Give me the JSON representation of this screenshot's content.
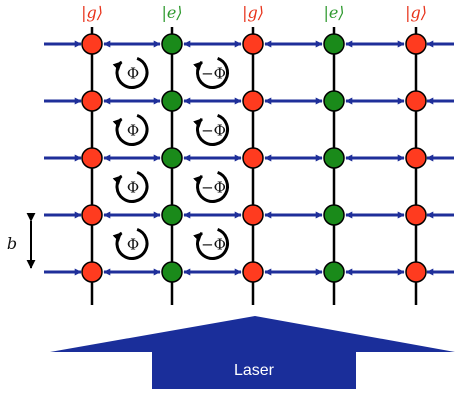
{
  "diagram": {
    "column_labels": [
      "|g⟩",
      "|e⟩",
      "|g⟩",
      "|e⟩",
      "|g⟩"
    ],
    "column_states": [
      "g",
      "e",
      "g",
      "e",
      "g"
    ],
    "flux_left": "Φ",
    "flux_right": "−Φ",
    "spacing_label": "b",
    "laser_label": "Laser",
    "colors": {
      "ground": "#ff3b1f",
      "excited": "#1a8a1a",
      "ground_label": "#e8341c",
      "excited_label": "#2f9a2f",
      "coupling": "#1f2f9a",
      "laser": "#1a2e9a",
      "lattice": "#000000"
    }
  }
}
